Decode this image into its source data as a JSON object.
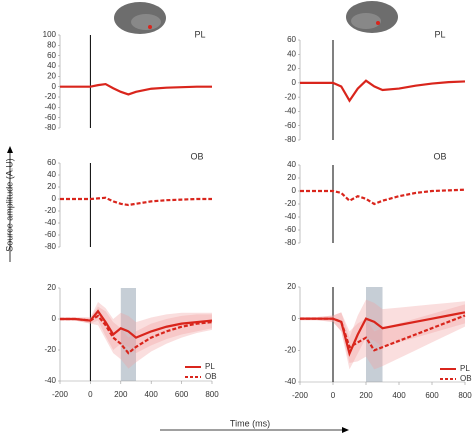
{
  "figure": {
    "ylabel": "Source amplitude (A.U)",
    "xlabel": "Time (ms)"
  },
  "chart_data": [
    {
      "type": "line",
      "x": [
        -200,
        -100,
        0,
        50,
        100,
        150,
        200,
        250,
        300,
        400,
        500,
        600,
        700,
        800
      ],
      "xlim": [
        -200,
        800
      ],
      "onset": 0,
      "ylim": [
        -80,
        100
      ],
      "yticks": [
        100,
        80,
        60,
        40,
        20,
        0,
        -20,
        -40,
        -60,
        -80
      ],
      "label_panel": true,
      "series": [
        {
          "name": "PL",
          "color": "#d9251c",
          "values": [
            0,
            0,
            0,
            3,
            5,
            -3,
            -10,
            -15,
            -10,
            -4,
            -2,
            -1,
            0,
            0
          ]
        }
      ]
    },
    {
      "type": "line",
      "x": [
        -200,
        -100,
        0,
        50,
        100,
        150,
        200,
        250,
        300,
        400,
        500,
        600,
        700,
        800
      ],
      "xlim": [
        -200,
        800
      ],
      "onset": 0,
      "ylim": [
        -80,
        60
      ],
      "yticks": [
        60,
        40,
        20,
        0,
        -20,
        -40,
        -60,
        -80
      ],
      "label_panel": true,
      "series": [
        {
          "name": "OB",
          "color": "#d9251c",
          "dashed": true,
          "values": [
            0,
            0,
            0,
            1,
            2,
            -4,
            -8,
            -10,
            -8,
            -4,
            -2,
            -1,
            0,
            0
          ]
        }
      ]
    },
    {
      "type": "line",
      "x": [
        -200,
        -100,
        0,
        50,
        100,
        150,
        200,
        250,
        300,
        400,
        500,
        600,
        700,
        800
      ],
      "xlim": [
        -200,
        800
      ],
      "onset": 0,
      "xticks": [
        -200,
        0,
        200,
        400,
        600,
        800
      ],
      "ylim": [
        -40,
        20
      ],
      "yticks": [
        20,
        0,
        -20,
        -40
      ],
      "window": [
        200,
        300
      ],
      "legend": true,
      "series": [
        {
          "name": "PL",
          "color": "#d9251c",
          "values": [
            0,
            0,
            -1,
            5,
            -2,
            -10,
            -6,
            -8,
            -12,
            -8,
            -5,
            -3,
            -2,
            -1
          ],
          "errors": [
            1,
            1,
            2,
            6,
            9,
            10,
            10,
            10,
            10,
            9,
            8,
            7,
            6,
            5
          ]
        },
        {
          "name": "OB",
          "color": "#d9251c",
          "dashed": true,
          "values": [
            0,
            0,
            -1,
            2,
            -4,
            -12,
            -16,
            -22,
            -18,
            -12,
            -8,
            -5,
            -3,
            -2
          ],
          "errors": [
            1,
            1,
            2,
            6,
            9,
            10,
            10,
            10,
            10,
            9,
            8,
            7,
            6,
            5
          ]
        }
      ]
    },
    {
      "type": "line",
      "x": [
        -200,
        -100,
        0,
        50,
        100,
        150,
        200,
        250,
        300,
        400,
        500,
        600,
        700,
        800
      ],
      "xlim": [
        -200,
        800
      ],
      "onset": 0,
      "ylim": [
        -80,
        60
      ],
      "yticks": [
        60,
        40,
        20,
        0,
        -20,
        -40,
        -60,
        -80
      ],
      "label_panel": true,
      "series": [
        {
          "name": "PL",
          "color": "#d9251c",
          "values": [
            0,
            0,
            0,
            -5,
            -25,
            -8,
            3,
            -5,
            -10,
            -8,
            -4,
            -1,
            1,
            2
          ]
        }
      ]
    },
    {
      "type": "line",
      "x": [
        -200,
        -100,
        0,
        50,
        100,
        150,
        200,
        250,
        300,
        400,
        500,
        600,
        700,
        800
      ],
      "xlim": [
        -200,
        800
      ],
      "onset": 0,
      "ylim": [
        -80,
        40
      ],
      "yticks": [
        40,
        20,
        0,
        -20,
        -40,
        -60,
        -80
      ],
      "label_panel": true,
      "series": [
        {
          "name": "OB",
          "color": "#d9251c",
          "dashed": true,
          "values": [
            0,
            0,
            0,
            -3,
            -15,
            -8,
            -12,
            -20,
            -15,
            -8,
            -3,
            0,
            1,
            2
          ]
        }
      ]
    },
    {
      "type": "line",
      "x": [
        -200,
        -100,
        0,
        50,
        100,
        150,
        200,
        250,
        300,
        400,
        500,
        600,
        700,
        800
      ],
      "xlim": [
        -200,
        800
      ],
      "onset": 0,
      "xticks": [
        -200,
        0,
        200,
        400,
        600,
        800
      ],
      "ylim": [
        -40,
        20
      ],
      "yticks": [
        20,
        0,
        -20,
        -40
      ],
      "window": [
        200,
        300
      ],
      "legend": true,
      "series": [
        {
          "name": "PL",
          "color": "#d9251c",
          "values": [
            0,
            0,
            0,
            -2,
            -22,
            -10,
            0,
            -2,
            -6,
            -4,
            -2,
            0,
            2,
            4
          ],
          "errors": [
            1,
            1,
            2,
            6,
            10,
            12,
            12,
            12,
            12,
            11,
            10,
            9,
            8,
            7
          ]
        },
        {
          "name": "OB",
          "color": "#d9251c",
          "dashed": true,
          "values": [
            0,
            0,
            0,
            -2,
            -18,
            -15,
            -12,
            -20,
            -18,
            -14,
            -10,
            -6,
            -2,
            2
          ],
          "errors": [
            1,
            1,
            2,
            6,
            10,
            12,
            12,
            12,
            12,
            11,
            10,
            9,
            8,
            7
          ]
        }
      ]
    }
  ]
}
